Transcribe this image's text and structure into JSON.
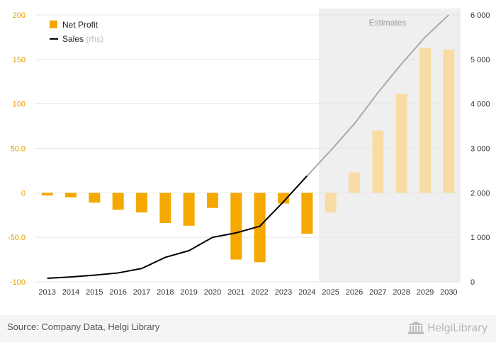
{
  "chart_data": {
    "type": "bar+line",
    "categories": [
      "2013",
      "2014",
      "2015",
      "2016",
      "2017",
      "2018",
      "2019",
      "2020",
      "2021",
      "2022",
      "2023",
      "2024",
      "2025",
      "2026",
      "2027",
      "2028",
      "2029",
      "2030"
    ],
    "estimate_start_index": 12,
    "estimates_label": "Estimates",
    "series": [
      {
        "name": "Net Profit",
        "type": "bar",
        "axis": "left",
        "color": "#f5a800",
        "estimate_color": "#f8dca3",
        "values": [
          -3,
          -5,
          -11,
          -19,
          -22,
          -34,
          -37,
          -17,
          -75,
          -78,
          -12,
          -46,
          -22,
          23,
          70,
          111,
          163,
          161
        ]
      },
      {
        "name": "Sales",
        "name_suffix": "(rhs)",
        "type": "line",
        "axis": "right",
        "color": "#000000",
        "estimate_color": "#aaaaaa",
        "values": [
          80,
          110,
          150,
          200,
          300,
          550,
          700,
          1000,
          1100,
          1250,
          1800,
          2380,
          2950,
          3550,
          4250,
          4900,
          5500,
          6000
        ]
      }
    ],
    "left_axis": {
      "ylim": [
        -100,
        200
      ],
      "ticks": [
        200,
        150,
        100,
        50,
        0,
        -50,
        -100
      ],
      "tick_labels": [
        "200",
        "150",
        "100",
        "50.0",
        "0",
        "-50.0",
        "-100"
      ],
      "color": "#e0a000"
    },
    "right_axis": {
      "ylim": [
        0,
        6000
      ],
      "ticks": [
        6000,
        5000,
        4000,
        3000,
        2000,
        1000,
        0
      ],
      "tick_labels": [
        "6 000",
        "5 000",
        "4 000",
        "3 000",
        "2 000",
        "1 000",
        "0"
      ]
    },
    "grid": true,
    "legend_position": "top-left"
  },
  "footer": {
    "source": "Source: Company Data, Helgi Library",
    "logo_text": "HelgiLibrary"
  },
  "colors": {
    "estimates_shade": "#efefef",
    "grid": "#e6e6e6"
  }
}
